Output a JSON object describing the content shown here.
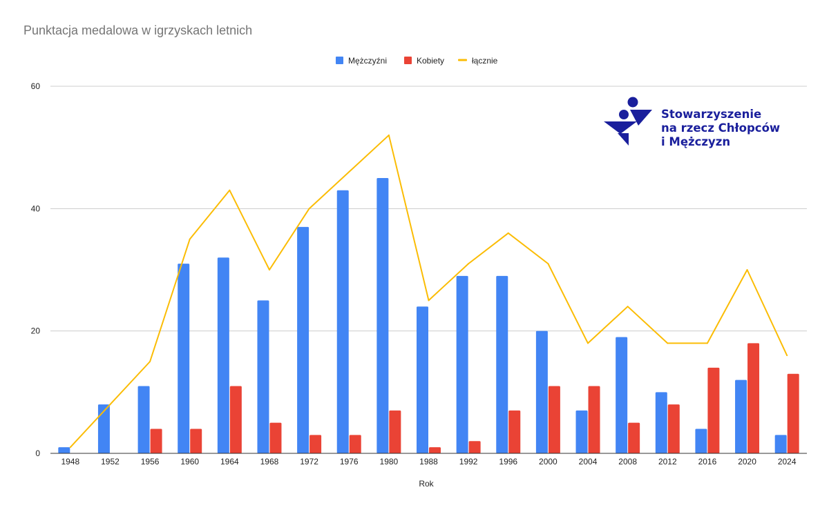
{
  "chart_data": {
    "type": "bar",
    "title": "Punktacja medalowa w igrzyskach letnich",
    "xlabel": "Rok",
    "ylabel": "",
    "ylim": [
      0,
      60
    ],
    "yticks": [
      0,
      20,
      40,
      60
    ],
    "grid": true,
    "legend_position": "top-center",
    "categories": [
      "1948",
      "1952",
      "1956",
      "1960",
      "1964",
      "1968",
      "1972",
      "1976",
      "1980",
      "1988",
      "1992",
      "1996",
      "2000",
      "2004",
      "2008",
      "2012",
      "2016",
      "2020",
      "2024"
    ],
    "series": [
      {
        "name": "Mężczyźni",
        "type": "bar",
        "color": "#4285f4",
        "values": [
          1,
          8,
          11,
          31,
          32,
          25,
          37,
          43,
          45,
          24,
          29,
          29,
          20,
          7,
          19,
          10,
          4,
          12,
          3
        ]
      },
      {
        "name": "Kobiety",
        "type": "bar",
        "color": "#ea4335",
        "values": [
          0,
          0,
          4,
          4,
          11,
          5,
          3,
          3,
          7,
          1,
          2,
          7,
          11,
          11,
          5,
          8,
          14,
          18,
          13
        ]
      },
      {
        "name": "łącznie",
        "type": "line",
        "color": "#fbbc04",
        "values": [
          1,
          8,
          15,
          35,
          43,
          30,
          40,
          46,
          52,
          25,
          31,
          36,
          31,
          18,
          24,
          18,
          18,
          30,
          16
        ]
      }
    ]
  },
  "logo": {
    "line1": "Stowarzyszenie",
    "line2": "na rzecz Chłopców",
    "line3": "i Mężczyzn",
    "color": "#1a1f9c"
  }
}
